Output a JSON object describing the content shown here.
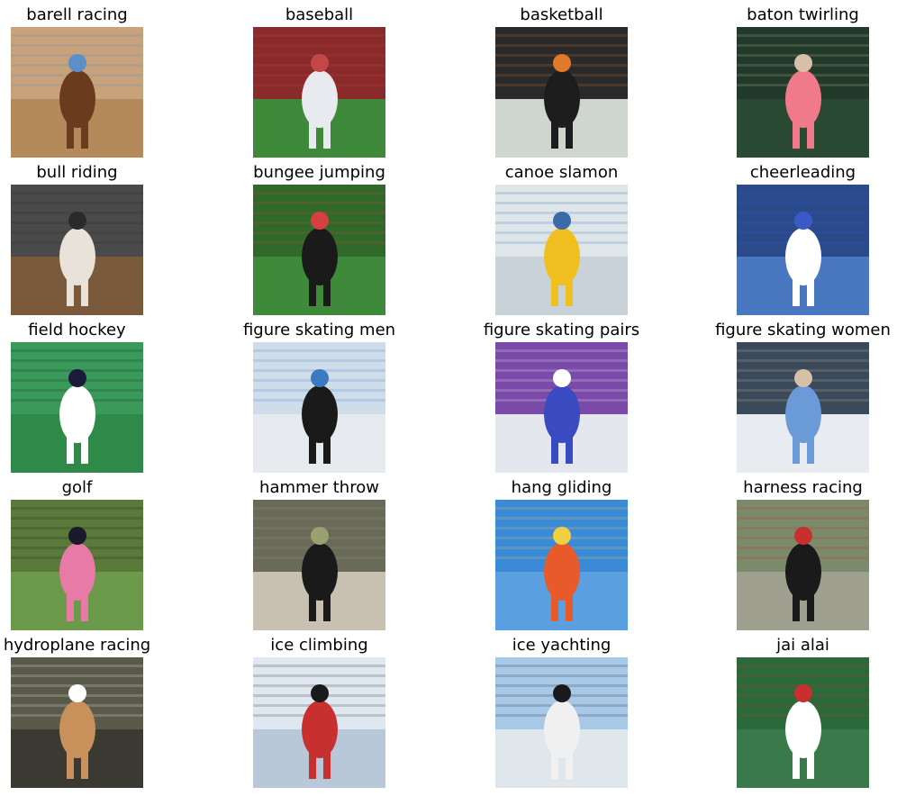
{
  "grid": {
    "items": [
      {
        "label": "barell racing",
        "icon": "barrel-racing-photo",
        "bg": "#c8a27a",
        "ground": "#b58a5a",
        "subject": "#6b3b1f",
        "accent": "#5a8fc8"
      },
      {
        "label": "baseball",
        "icon": "baseball-photo",
        "bg": "#8a2a2a",
        "ground": "#3f8a3a",
        "subject": "#e9e9f0",
        "accent": "#c24848"
      },
      {
        "label": "basketball",
        "icon": "basketball-photo",
        "bg": "#2a2a2a",
        "ground": "#cfd6cf",
        "subject": "#1d1d1d",
        "accent": "#e07a2a"
      },
      {
        "label": "baton twirling",
        "icon": "baton-twirling-photo",
        "bg": "#213a2a",
        "ground": "#2a4a34",
        "subject": "#f07a8a",
        "accent": "#d8c0a8"
      },
      {
        "label": "bull riding",
        "icon": "bull-riding-photo",
        "bg": "#4a4a4a",
        "ground": "#7a5a3a",
        "subject": "#e8e2d8",
        "accent": "#2a2a2a"
      },
      {
        "label": "bungee jumping",
        "icon": "bungee-jumping-photo",
        "bg": "#2f6a2a",
        "ground": "#3f8a3a",
        "subject": "#1a1a1a",
        "accent": "#d84040"
      },
      {
        "label": "canoe slamon",
        "icon": "canoe-slalom-photo",
        "bg": "#dfe6ea",
        "ground": "#c8d2d8",
        "subject": "#f0c020",
        "accent": "#3a6aa8"
      },
      {
        "label": "cheerleading",
        "icon": "cheerleading-photo",
        "bg": "#2a4a8a",
        "ground": "#4a78c0",
        "subject": "#ffffff",
        "accent": "#3a5ac8"
      },
      {
        "label": "field hockey",
        "icon": "field-hockey-photo",
        "bg": "#3a9a5a",
        "ground": "#2f8a4a",
        "subject": "#ffffff",
        "accent": "#1a1a3a"
      },
      {
        "label": "figure skating men",
        "icon": "figure-skating-men-photo",
        "bg": "#cfdcea",
        "ground": "#e6eaee",
        "subject": "#1a1a1a",
        "accent": "#3a7ac0"
      },
      {
        "label": "figure skating pairs",
        "icon": "figure-skating-pairs-photo",
        "bg": "#7a4aa8",
        "ground": "#e4e8ee",
        "subject": "#3a4ac0",
        "accent": "#ffffff"
      },
      {
        "label": "figure skating women",
        "icon": "figure-skating-women-photo",
        "bg": "#3a4a5a",
        "ground": "#e8ecf0",
        "subject": "#6a9ad8",
        "accent": "#d8c0a8"
      },
      {
        "label": "golf",
        "icon": "golf-photo",
        "bg": "#5a7a3a",
        "ground": "#6a9a4a",
        "subject": "#e87aa8",
        "accent": "#1a1a2a"
      },
      {
        "label": "hammer throw",
        "icon": "hammer-throw-photo",
        "bg": "#6a6a5a",
        "ground": "#c8c0b0",
        "subject": "#1a1a1a",
        "accent": "#9aa070"
      },
      {
        "label": "hang gliding",
        "icon": "hang-gliding-photo",
        "bg": "#3a8ad8",
        "ground": "#5aa0e0",
        "subject": "#e85a2a",
        "accent": "#f0d040"
      },
      {
        "label": "harness racing",
        "icon": "harness-racing-photo",
        "bg": "#7a8a6a",
        "ground": "#a0a090",
        "subject": "#1a1a1a",
        "accent": "#c83030"
      },
      {
        "label": "hydroplane racing",
        "icon": "hydroplane-racing-photo",
        "bg": "#5a5a4a",
        "ground": "#3a3a32",
        "subject": "#c8905a",
        "accent": "#ffffff"
      },
      {
        "label": "ice climbing",
        "icon": "ice-climbing-photo",
        "bg": "#dfe8f0",
        "ground": "#b8c8d8",
        "subject": "#c83030",
        "accent": "#1a1a1a"
      },
      {
        "label": "ice yachting",
        "icon": "ice-yachting-photo",
        "bg": "#a8c8e8",
        "ground": "#dfe6ec",
        "subject": "#f0f0f0",
        "accent": "#1a1a1a"
      },
      {
        "label": "jai alai",
        "icon": "jai-alai-photo",
        "bg": "#2a6a3a",
        "ground": "#3a7a4a",
        "subject": "#ffffff",
        "accent": "#c83030"
      }
    ]
  },
  "next_row_cut": []
}
